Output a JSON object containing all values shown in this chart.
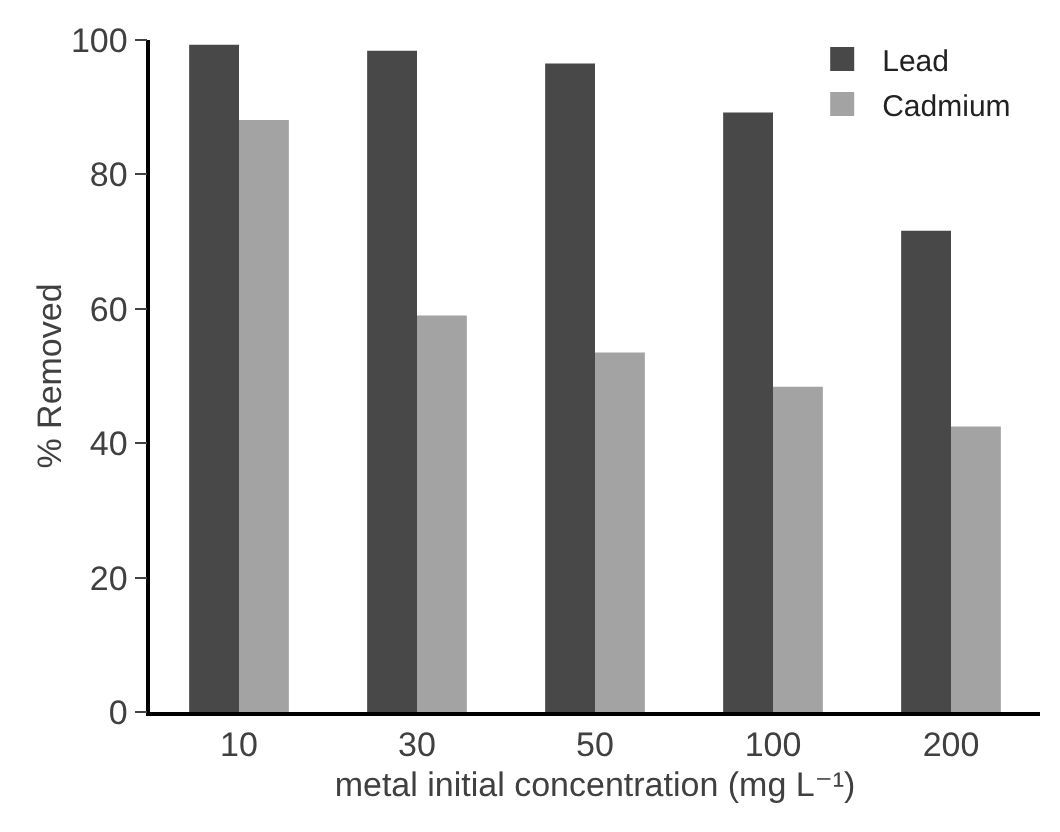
{
  "chart_data": {
    "type": "bar",
    "xlabel": "metal initial concentration (mg L⁻¹)",
    "ylabel": "% Removed",
    "categories": [
      "10",
      "30",
      "50",
      "100",
      "200"
    ],
    "series": [
      {
        "name": "Lead",
        "color": "#484848",
        "values": [
          99.3,
          98.4,
          96.5,
          89.2,
          71.6
        ]
      },
      {
        "name": "Cadmium",
        "color": "#a3a3a3",
        "values": [
          88.1,
          59.0,
          53.5,
          48.4,
          42.5
        ]
      }
    ],
    "ylim": [
      0,
      100
    ],
    "yticks": [
      0,
      20,
      40,
      60,
      80,
      100
    ],
    "grid": false,
    "legend": "top right"
  }
}
